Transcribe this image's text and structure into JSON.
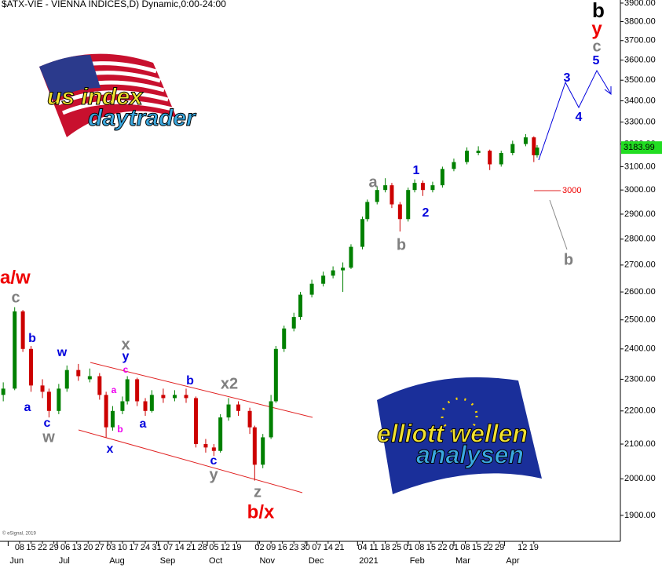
{
  "chart_data": {
    "type": "candlestick",
    "title": "$ATX-VIE - VIENNA INDICES,D) Dynamic,0:00-24:00",
    "copyright": "© eSignal, 2019",
    "log_scale": true,
    "up_color": "#008000",
    "down_color": "#cc0000",
    "x": [
      "2020-05-29",
      "2020-06-05",
      "2020-06-10",
      "2020-06-15",
      "2020-06-22",
      "2020-06-26",
      "2020-07-02",
      "2020-07-07",
      "2020-07-14",
      "2020-07-21",
      "2020-07-27",
      "2020-07-31",
      "2020-08-04",
      "2020-08-10",
      "2020-08-13",
      "2020-08-19",
      "2020-08-24",
      "2020-08-28",
      "2020-09-04",
      "2020-09-11",
      "2020-09-18",
      "2020-09-24",
      "2020-09-30",
      "2020-10-05",
      "2020-10-09",
      "2020-10-14",
      "2020-10-20",
      "2020-10-27",
      "2020-10-30",
      "2020-11-04",
      "2020-11-09",
      "2020-11-12",
      "2020-11-17",
      "2020-11-23",
      "2020-11-27",
      "2020-12-04",
      "2020-12-11",
      "2020-12-17",
      "2020-12-23",
      "2020-12-28",
      "2021-01-04",
      "2021-01-07",
      "2021-01-13",
      "2021-01-18",
      "2021-01-22",
      "2021-01-27",
      "2021-02-01",
      "2021-02-05",
      "2021-02-10",
      "2021-02-16",
      "2021-02-22",
      "2021-03-01",
      "2021-03-09",
      "2021-03-16",
      "2021-03-23",
      "2021-03-30",
      "2021-04-06",
      "2021-04-14",
      "2021-04-19",
      "2021-04-21"
    ],
    "open": [
      2250,
      2270,
      2530,
      2400,
      2280,
      2260,
      2200,
      2270,
      2330,
      2300,
      2310,
      2250,
      2150,
      2200,
      2230,
      2300,
      2230,
      2200,
      2250,
      2240,
      2250,
      2240,
      2100,
      2090,
      2080,
      2180,
      2220,
      2200,
      2150,
      2040,
      2120,
      2230,
      2400,
      2470,
      2510,
      2590,
      2630,
      2660,
      2680,
      2690,
      2770,
      2880,
      2950,
      3000,
      3020,
      2940,
      2880,
      3000,
      3030,
      3000,
      3020,
      3090,
      3120,
      3160,
      3170,
      3110,
      3160,
      3200,
      3230,
      3150
    ],
    "high": [
      2290,
      2545,
      2535,
      2410,
      2300,
      2270,
      2285,
      2345,
      2350,
      2335,
      2320,
      2260,
      2215,
      2245,
      2310,
      2305,
      2240,
      2265,
      2270,
      2265,
      2270,
      2245,
      2115,
      2100,
      2190,
      2240,
      2230,
      2210,
      2155,
      2130,
      2250,
      2410,
      2480,
      2525,
      2600,
      2645,
      2675,
      2695,
      2710,
      2780,
      2890,
      2960,
      3015,
      3050,
      3030,
      2950,
      3010,
      3045,
      3040,
      3035,
      3100,
      3135,
      3185,
      3190,
      3175,
      3170,
      3215,
      3245,
      3235,
      3195
    ],
    "low": [
      2230,
      2265,
      2390,
      2260,
      2240,
      2180,
      2190,
      2260,
      2295,
      2290,
      2235,
      2120,
      2140,
      2190,
      2220,
      2215,
      2185,
      2195,
      2225,
      2230,
      2225,
      2090,
      2075,
      2065,
      2075,
      2170,
      2185,
      2130,
      1995,
      2030,
      2115,
      2225,
      2390,
      2460,
      2500,
      2580,
      2620,
      2650,
      2600,
      2685,
      2760,
      2870,
      2940,
      2990,
      2925,
      2830,
      2870,
      2990,
      2975,
      2990,
      3010,
      3080,
      3110,
      3150,
      3085,
      3100,
      3150,
      3190,
      3120,
      3140
    ],
    "close": [
      2270,
      2530,
      2400,
      2280,
      2260,
      2200,
      2270,
      2330,
      2310,
      2310,
      2250,
      2150,
      2200,
      2230,
      2300,
      2230,
      2200,
      2250,
      2240,
      2250,
      2240,
      2100,
      2090,
      2080,
      2180,
      2220,
      2200,
      2150,
      2040,
      2120,
      2230,
      2400,
      2470,
      2510,
      2590,
      2630,
      2660,
      2680,
      2690,
      2770,
      2880,
      2950,
      3000,
      3020,
      2940,
      2880,
      3000,
      3030,
      3000,
      3020,
      3090,
      3120,
      3170,
      3170,
      3110,
      3160,
      3200,
      3230,
      3150,
      3183.99
    ],
    "last_value_label": "3183.99",
    "last_color": "#22dd22",
    "ylim": [
      1832,
      3917
    ],
    "yticks": [
      {
        "value": 1900,
        "label": "1900.00"
      },
      {
        "value": 2000,
        "label": "2000.00"
      },
      {
        "value": 2100,
        "label": "2100.00"
      },
      {
        "value": 2200,
        "label": "2200.00"
      },
      {
        "value": 2300,
        "label": "2300.00"
      },
      {
        "value": 2400,
        "label": "2400.00"
      },
      {
        "value": 2500,
        "label": "2500.00"
      },
      {
        "value": 2600,
        "label": "2600.00"
      },
      {
        "value": 2700,
        "label": "2700.00"
      },
      {
        "value": 2800,
        "label": "2800.00"
      },
      {
        "value": 2900,
        "label": "2900.00"
      },
      {
        "value": 3000,
        "label": "3000.00"
      },
      {
        "value": 3100,
        "label": "3100.00"
      },
      {
        "value": 3200,
        "label": "3200.00"
      },
      {
        "value": 3300,
        "label": "3300.00"
      },
      {
        "value": 3400,
        "label": "3400.00"
      },
      {
        "value": 3500,
        "label": "3500.00"
      },
      {
        "value": 3600,
        "label": "3600.00"
      },
      {
        "value": 3700,
        "label": "3700.00"
      },
      {
        "value": 3800,
        "label": "3800.00"
      },
      {
        "value": 3900,
        "label": "3900.00"
      }
    ],
    "xlim": [
      "2020-05-27",
      "2021-06-11"
    ],
    "xticks": [
      {
        "value": "2020-06-08",
        "label": "08"
      },
      {
        "value": "2020-06-15",
        "label": "15"
      },
      {
        "value": "2020-06-22",
        "label": "22"
      },
      {
        "value": "2020-06-29",
        "label": "29"
      },
      {
        "value": "2020-07-06",
        "label": "06"
      },
      {
        "value": "2020-07-13",
        "label": "13"
      },
      {
        "value": "2020-07-20",
        "label": "20"
      },
      {
        "value": "2020-07-27",
        "label": "27"
      },
      {
        "value": "2020-08-03",
        "label": "03"
      },
      {
        "value": "2020-08-10",
        "label": "10"
      },
      {
        "value": "2020-08-17",
        "label": "17"
      },
      {
        "value": "2020-08-24",
        "label": "24"
      },
      {
        "value": "2020-08-31",
        "label": "31"
      },
      {
        "value": "2020-09-07",
        "label": "07"
      },
      {
        "value": "2020-09-14",
        "label": "14"
      },
      {
        "value": "2020-09-21",
        "label": "21"
      },
      {
        "value": "2020-09-28",
        "label": "28"
      },
      {
        "value": "2020-10-05",
        "label": "05"
      },
      {
        "value": "2020-10-12",
        "label": "12"
      },
      {
        "value": "2020-10-19",
        "label": "19"
      },
      {
        "value": "2020-11-02",
        "label": "02"
      },
      {
        "value": "2020-11-09",
        "label": "09"
      },
      {
        "value": "2020-11-16",
        "label": "16"
      },
      {
        "value": "2020-11-23",
        "label": "23"
      },
      {
        "value": "2020-11-30",
        "label": "30"
      },
      {
        "value": "2020-12-07",
        "label": "07"
      },
      {
        "value": "2020-12-14",
        "label": "14"
      },
      {
        "value": "2020-12-21",
        "label": "21"
      },
      {
        "value": "2021-01-04",
        "label": "04"
      },
      {
        "value": "2021-01-11",
        "label": "11"
      },
      {
        "value": "2021-01-18",
        "label": "18"
      },
      {
        "value": "2021-01-25",
        "label": "25"
      },
      {
        "value": "2021-02-01",
        "label": "01"
      },
      {
        "value": "2021-02-08",
        "label": "08"
      },
      {
        "value": "2021-02-15",
        "label": "15"
      },
      {
        "value": "2021-02-22",
        "label": "22"
      },
      {
        "value": "2021-03-01",
        "label": "01"
      },
      {
        "value": "2021-03-08",
        "label": "08"
      },
      {
        "value": "2021-03-15",
        "label": "15"
      },
      {
        "value": "2021-03-22",
        "label": "22"
      },
      {
        "value": "2021-03-29",
        "label": "29"
      },
      {
        "value": "2021-04-12",
        "label": "12"
      },
      {
        "value": "2021-04-19",
        "label": "19"
      }
    ],
    "month_ticks": [
      {
        "value": "2020-06-01",
        "label": "Jun"
      },
      {
        "value": "2020-07-01",
        "label": "Jul"
      },
      {
        "value": "2020-08-01",
        "label": "Aug"
      },
      {
        "value": "2020-09-01",
        "label": "Sep"
      },
      {
        "value": "2020-10-01",
        "label": "Oct"
      },
      {
        "value": "2020-11-01",
        "label": "Nov"
      },
      {
        "value": "2020-12-01",
        "label": "Dec"
      },
      {
        "value": "2021-01-01",
        "label": "2021"
      },
      {
        "value": "2021-02-01",
        "label": "Feb"
      },
      {
        "value": "2021-03-01",
        "label": "Mar"
      },
      {
        "value": "2021-04-01",
        "label": "Apr"
      }
    ],
    "annotations": [
      {
        "text": "a/w",
        "color": "#ee0000"
      },
      {
        "text": "c",
        "color": "#808080"
      },
      {
        "text": "b",
        "color": "#0000dd"
      },
      {
        "text": "w",
        "color": "#0000dd"
      },
      {
        "text": "a",
        "color": "#0000dd"
      },
      {
        "text": "c",
        "color": "#0000dd"
      },
      {
        "text": "w",
        "color": "#808080"
      },
      {
        "text": "x",
        "color": "#808080"
      },
      {
        "text": "y",
        "color": "#0000dd"
      },
      {
        "text": "c",
        "color": "#ee00ee"
      },
      {
        "text": "a",
        "color": "#ee00ee"
      },
      {
        "text": "b",
        "color": "#ee00ee"
      },
      {
        "text": "x",
        "color": "#0000dd"
      },
      {
        "text": "a",
        "color": "#0000dd"
      },
      {
        "text": "b",
        "color": "#0000dd"
      },
      {
        "text": "x2",
        "color": "#808080"
      },
      {
        "text": "c",
        "color": "#0000dd"
      },
      {
        "text": "y",
        "color": "#808080"
      },
      {
        "text": "z",
        "color": "#808080"
      },
      {
        "text": "b/x",
        "color": "#ee0000"
      },
      {
        "text": "a",
        "color": "#808080"
      },
      {
        "text": "1",
        "color": "#0000dd"
      },
      {
        "text": "2",
        "color": "#0000dd"
      },
      {
        "text": "b",
        "color": "#808080"
      },
      {
        "text": "3",
        "color": "#0000dd"
      },
      {
        "text": "4",
        "color": "#0000dd"
      },
      {
        "text": "5",
        "color": "#0000dd"
      },
      {
        "text": "c",
        "color": "#808080"
      },
      {
        "text": "y",
        "color": "#ee0000"
      },
      {
        "text": "b",
        "color": "#000000"
      },
      {
        "text": "b",
        "color": "#808080"
      },
      {
        "text": "3000",
        "color": "#ee0000"
      }
    ],
    "logo_top": [
      "us index",
      "daytrader"
    ],
    "logo_bottom": [
      "elliott wellen",
      "analysen"
    ]
  }
}
